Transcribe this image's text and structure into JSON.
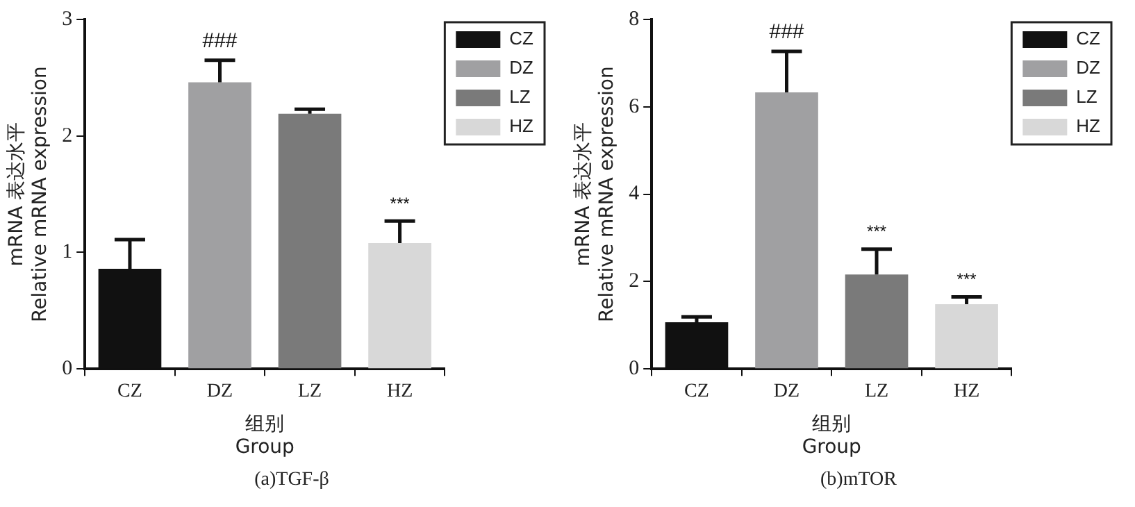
{
  "chart_data": [
    {
      "type": "bar",
      "title": "(a)TGF-β",
      "xlabel": "组别\nGroup",
      "ylabel": "mRNA 表达水平\nRelative mRNA expression",
      "categories": [
        "CZ",
        "DZ",
        "LZ",
        "HZ"
      ],
      "series": [
        {
          "name": "CZ",
          "color": "#111111",
          "values": [
            0.86,
            null,
            null,
            null
          ],
          "errors": [
            [
              0.86,
              1.11
            ],
            null,
            null,
            null
          ]
        },
        {
          "name": "DZ",
          "color": "#a0a0a2",
          "values": [
            null,
            2.46,
            null,
            null
          ],
          "errors": [
            null,
            [
              2.46,
              2.65
            ],
            null,
            null
          ]
        },
        {
          "name": "LZ",
          "color": "#7a7a7a",
          "values": [
            null,
            null,
            2.19,
            null
          ],
          "errors": [
            null,
            null,
            [
              2.19,
              2.23
            ],
            null
          ]
        },
        {
          "name": "HZ",
          "color": "#d8d8d8",
          "values": [
            null,
            null,
            null,
            1.08
          ],
          "errors": [
            null,
            null,
            null,
            [
              1.08,
              1.27
            ]
          ]
        }
      ],
      "ylim": [
        0,
        3
      ],
      "yticks": [
        0,
        1,
        2,
        3
      ],
      "grid": false,
      "legend": "top right",
      "annotations": [
        {
          "text": "###",
          "x": "DZ",
          "y": 2.65
        },
        {
          "text": "***",
          "x": "HZ",
          "y": 1.27
        }
      ]
    },
    {
      "type": "bar",
      "title": "(b)mTOR",
      "xlabel": "组别\nGroup",
      "ylabel": "mRNA 表达水平\nRelative mRNA expression",
      "categories": [
        "CZ",
        "DZ",
        "LZ",
        "HZ"
      ],
      "series": [
        {
          "name": "CZ",
          "color": "#111111",
          "values": [
            1.07,
            null,
            null,
            null
          ],
          "errors": [
            [
              1.07,
              1.19
            ],
            null,
            null,
            null
          ]
        },
        {
          "name": "DZ",
          "color": "#a0a0a2",
          "values": [
            null,
            6.33,
            null,
            null
          ],
          "errors": [
            null,
            [
              6.33,
              7.27
            ],
            null,
            null
          ]
        },
        {
          "name": "LZ",
          "color": "#7a7a7a",
          "values": [
            null,
            null,
            2.16,
            null
          ],
          "errors": [
            null,
            null,
            [
              2.16,
              2.74
            ],
            null
          ]
        },
        {
          "name": "HZ",
          "color": "#d8d8d8",
          "values": [
            null,
            null,
            null,
            1.48
          ],
          "errors": [
            null,
            null,
            null,
            [
              1.48,
              1.65
            ]
          ]
        }
      ],
      "ylim": [
        0,
        8
      ],
      "yticks": [
        0,
        2,
        4,
        6,
        8
      ],
      "grid": false,
      "legend": "top right",
      "annotations": [
        {
          "text": "###",
          "x": "DZ",
          "y": 7.27
        },
        {
          "text": "***",
          "x": "LZ",
          "y": 2.74
        },
        {
          "text": "***",
          "x": "HZ",
          "y": 1.65
        }
      ]
    }
  ]
}
